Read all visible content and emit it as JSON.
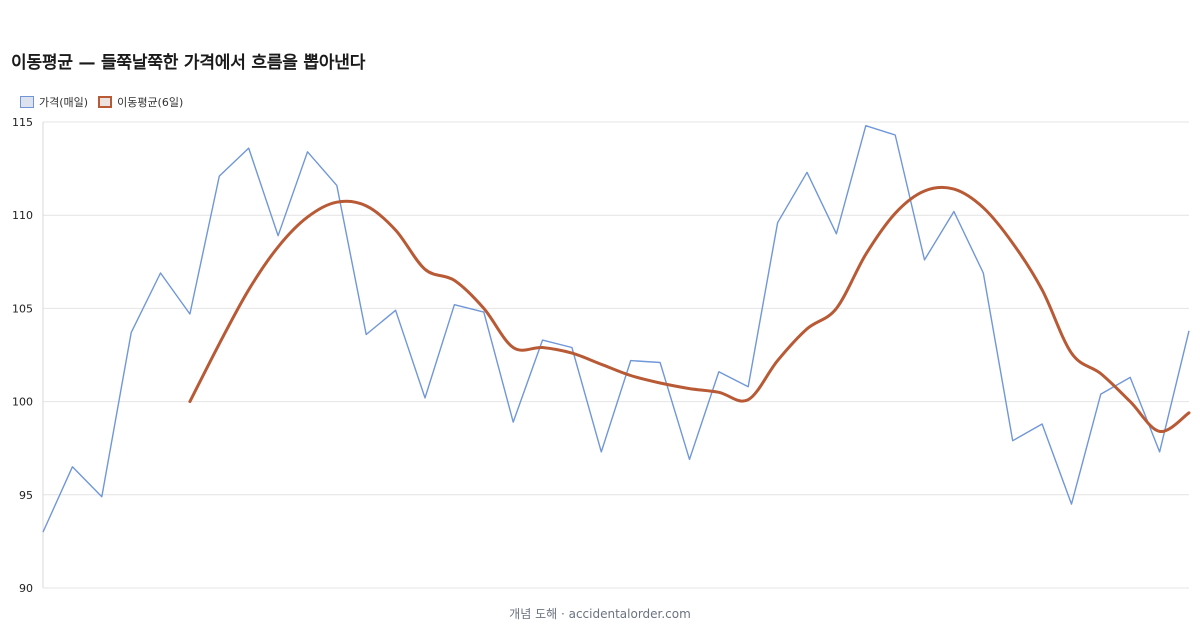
{
  "title": "이동평균 — 들쭉날쭉한 가격에서 흐름을 뽑아낸다",
  "credit": "개념 도해 · accidentalorder.com",
  "chart_data": {
    "type": "line",
    "title": "이동평균 — 들쭉날쭉한 가격에서 흐름을 뽑아낸다",
    "xlabel": "",
    "ylabel": "",
    "ylim": [
      90,
      115
    ],
    "yticks": [
      90,
      95,
      100,
      105,
      110,
      115
    ],
    "grid": true,
    "legend_position": "top-left",
    "x": [
      1,
      2,
      3,
      4,
      5,
      6,
      7,
      8,
      9,
      10,
      11,
      12,
      13,
      14,
      15,
      16,
      17,
      18,
      19,
      20,
      21,
      22,
      23,
      24,
      25,
      26,
      27,
      28,
      29,
      30,
      31,
      32,
      33,
      34,
      35,
      36,
      37,
      38,
      39,
      40
    ],
    "series": [
      {
        "name": "가격(매일)",
        "color": "#7097d8",
        "values": [
          93.0,
          96.5,
          94.9,
          103.7,
          106.9,
          104.7,
          112.1,
          113.6,
          108.9,
          113.4,
          111.6,
          103.6,
          104.9,
          100.2,
          105.2,
          104.8,
          98.9,
          103.3,
          102.9,
          97.3,
          102.2,
          102.1,
          96.9,
          101.6,
          100.8,
          109.6,
          112.3,
          109.0,
          114.8,
          114.3,
          107.6,
          110.2,
          106.9,
          97.9,
          98.8,
          94.5,
          100.4,
          101.3,
          97.3,
          103.8
        ]
      },
      {
        "name": "이동평균(6일)",
        "color": "#b85a35",
        "values": [
          null,
          null,
          null,
          null,
          null,
          100.0,
          103.1,
          106.0,
          108.3,
          109.9,
          110.7,
          110.5,
          109.2,
          107.1,
          106.5,
          105.0,
          102.9,
          102.9,
          102.6,
          102.0,
          101.4,
          101.0,
          100.7,
          100.5,
          100.1,
          102.2,
          103.9,
          105.0,
          107.9,
          110.1,
          111.3,
          111.4,
          110.4,
          108.5,
          106.0,
          102.6,
          101.5,
          100.0,
          98.4,
          99.4
        ]
      }
    ]
  }
}
